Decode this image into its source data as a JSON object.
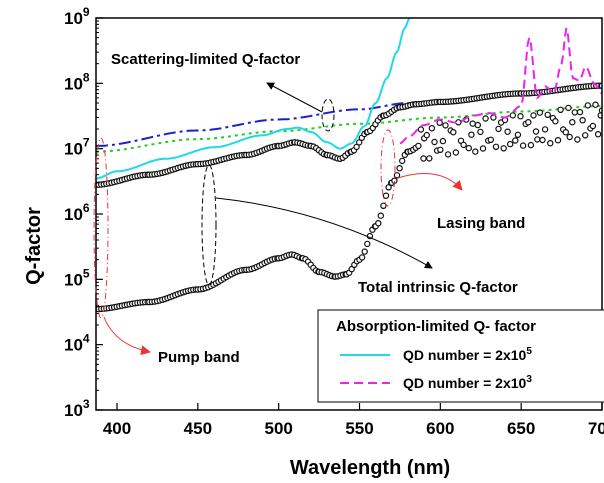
{
  "chart_data": {
    "type": "line",
    "xlabel": "Wavelength (nm)",
    "ylabel": "Q-factor",
    "xlim": [
      387,
      700
    ],
    "ylim": [
      1000,
      1000000000
    ],
    "yscale": "log",
    "x_ticks": [
      "400",
      "450",
      "500",
      "550",
      "600",
      "650",
      "700"
    ],
    "y_ticks": [
      {
        "base": "10",
        "exp": "3"
      },
      {
        "base": "10",
        "exp": "4"
      },
      {
        "base": "10",
        "exp": "5"
      },
      {
        "base": "10",
        "exp": "6"
      },
      {
        "base": "10",
        "exp": "7"
      },
      {
        "base": "10",
        "exp": "8"
      },
      {
        "base": "10",
        "exp": "9"
      }
    ],
    "series": [
      {
        "key": "scattering_blue",
        "color": "#1a22cc",
        "style": "dashdot",
        "x": [
          387,
          450,
          500,
          550,
          580,
          600
        ],
        "y": [
          11000000,
          19000000,
          28000000,
          40000000,
          50000000,
          52000000
        ]
      },
      {
        "key": "scattering_green",
        "color": "#22cc22",
        "style": "dotted",
        "x": [
          387,
          450,
          500,
          550,
          600,
          650,
          700
        ],
        "y": [
          9000000,
          14000000,
          18500000,
          24000000,
          30000000,
          37000000,
          45000000
        ]
      },
      {
        "key": "qd_2e5",
        "name": "QD number = 2x10",
        "name_exp": "5",
        "color": "#22d8e8",
        "style": "solid",
        "x": [
          387,
          400,
          430,
          460,
          490,
          505,
          512,
          520,
          530,
          538,
          545,
          553,
          560,
          567,
          573,
          578,
          581
        ],
        "y": [
          3500000,
          4500000,
          7000000,
          10500000,
          16000000,
          20000000,
          21000000,
          18000000,
          12500000,
          10000000,
          12000000,
          22000000,
          50000000,
          120000000,
          300000000,
          700000000,
          1000000000
        ]
      },
      {
        "key": "qd_2e3",
        "name": "QD number = 2x10",
        "name_exp": "3",
        "color": "#ee22ee",
        "style": "dashed",
        "x": [
          575,
          580,
          590,
          600,
          610,
          620,
          630,
          640,
          650,
          655,
          660,
          665,
          670,
          675,
          678,
          682,
          686,
          690,
          695,
          700
        ],
        "y": [
          12000000,
          15000000,
          23000000,
          28000000,
          25000000,
          32000000,
          35000000,
          30000000,
          45000000,
          500000000,
          60000000,
          90000000,
          70000000,
          200000000,
          700000000,
          120000000,
          110000000,
          180000000,
          100000000,
          70000000
        ]
      },
      {
        "key": "total_upper",
        "color": "#111111",
        "style": "circles",
        "x": [
          387,
          420,
          450,
          480,
          500,
          510,
          520,
          530,
          538,
          545,
          555,
          565,
          575,
          585,
          600,
          650,
          700
        ],
        "y": [
          2800000,
          4000000,
          5800000,
          8000000,
          11000000,
          12500000,
          11000000,
          8000000,
          7000000,
          9000000,
          18000000,
          32000000,
          43000000,
          48000000,
          52000000,
          70000000,
          92000000
        ]
      },
      {
        "key": "total_lower",
        "color": "#111111",
        "style": "circles",
        "x": [
          387,
          420,
          450,
          480,
          500,
          508,
          515,
          525,
          535,
          542,
          550,
          560,
          570,
          580,
          590,
          600,
          620,
          640,
          660,
          680,
          700
        ],
        "y": [
          35000,
          45000,
          70000,
          140000,
          210000,
          240000,
          210000,
          130000,
          110000,
          120000,
          200000,
          650000,
          3000000,
          9000000,
          12000000,
          14000000,
          16000000,
          18000000,
          20000000,
          24000000,
          28000000
        ]
      }
    ]
  },
  "annotations": {
    "scattering": "Scattering-limited Q-factor",
    "lasing": "Lasing band",
    "total": "Total intrinsic Q-factor",
    "pump": "Pump band"
  },
  "legend": {
    "title": "Absorption-limited Q- factor"
  }
}
